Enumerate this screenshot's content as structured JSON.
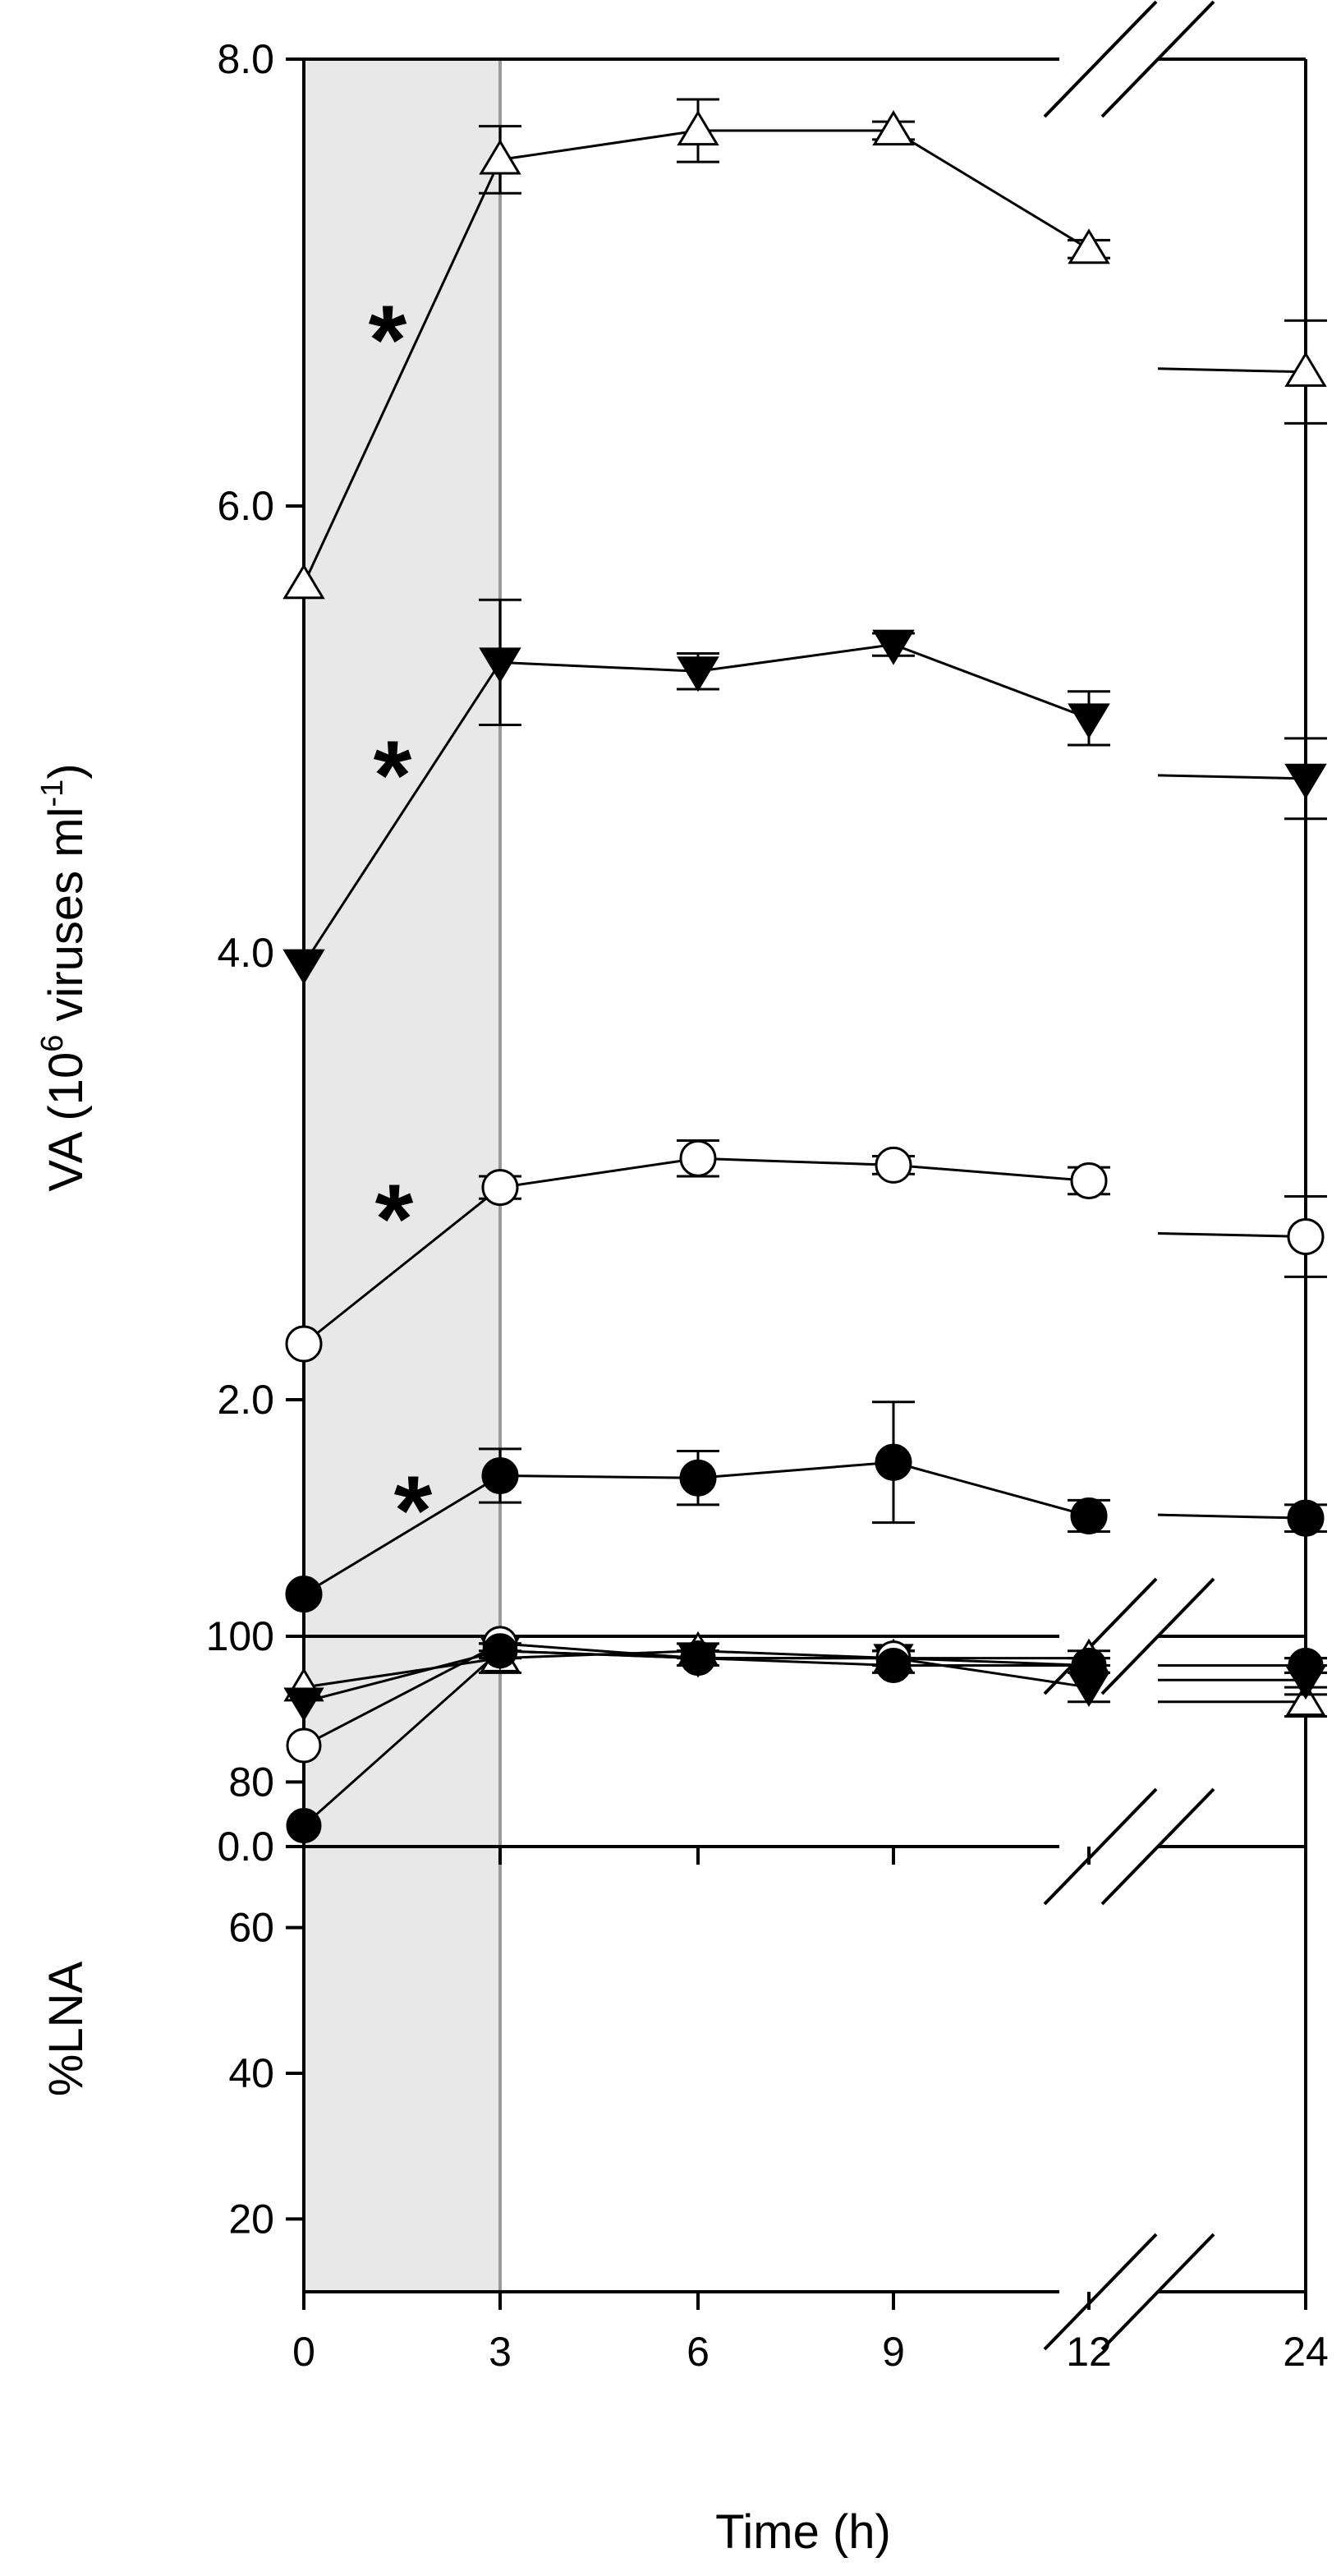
{
  "chart_data": [
    {
      "type": "line",
      "panel": "upper",
      "ylabel": {
        "main": "VA (10",
        "sup1": "6",
        "mid": " viruses ml",
        "sup2": "-1",
        "end": ")"
      },
      "xlabel": "Time (h)",
      "ylim": [
        0,
        8
      ],
      "yticks": [
        "0.0",
        "2.0",
        "4.0",
        "6.0",
        "8.0"
      ],
      "x": [
        0,
        3,
        6,
        9,
        12,
        24
      ],
      "xtick_labels": [
        "0",
        "3",
        "6",
        "9",
        "12",
        "24"
      ],
      "axis_break": "between 12 and 24",
      "shaded_region": [
        0,
        3
      ],
      "significance_marks": [
        "*",
        "*",
        "*",
        "*"
      ],
      "series": [
        {
          "marker": "open-triangle-up",
          "values": [
            5.65,
            7.55,
            7.68,
            7.68,
            7.15,
            6.6
          ],
          "errors": [
            0,
            0.15,
            0.14,
            0.04,
            0.04,
            0.23
          ]
        },
        {
          "marker": "filled-triangle-down",
          "values": [
            3.95,
            5.3,
            5.26,
            5.38,
            5.05,
            4.78
          ],
          "errors": [
            0,
            0.28,
            0.08,
            0.05,
            0.12,
            0.18
          ]
        },
        {
          "marker": "open-circle",
          "values": [
            2.25,
            2.95,
            3.08,
            3.05,
            2.98,
            2.73
          ],
          "errors": [
            0,
            0.05,
            0.08,
            0.04,
            0.06,
            0.18
          ]
        },
        {
          "marker": "filled-circle",
          "values": [
            1.13,
            1.66,
            1.65,
            1.72,
            1.48,
            1.47
          ],
          "errors": [
            0,
            0.12,
            0.12,
            0.27,
            0.07,
            0.06
          ]
        }
      ]
    },
    {
      "type": "line",
      "panel": "lower",
      "ylabel": "%LNA",
      "ylim": [
        10,
        100
      ],
      "yticks": [
        "20",
        "40",
        "60",
        "80",
        "100"
      ],
      "x": [
        0,
        3,
        6,
        9,
        12,
        24
      ],
      "series": [
        {
          "marker": "open-triangle-up",
          "values": [
            93,
            97,
            98,
            97,
            97,
            91
          ],
          "errors": [
            0,
            2,
            1,
            1,
            1,
            2
          ]
        },
        {
          "marker": "filled-triangle-down",
          "values": [
            91,
            98,
            97,
            97,
            93,
            94
          ],
          "errors": [
            0,
            1,
            1,
            1,
            2,
            2
          ]
        },
        {
          "marker": "open-circle",
          "values": [
            85,
            99,
            97,
            97,
            96,
            96
          ],
          "errors": [
            0,
            1,
            1,
            1,
            1,
            1
          ]
        },
        {
          "marker": "filled-circle",
          "values": [
            74,
            98,
            97,
            96,
            96,
            96
          ],
          "errors": [
            0,
            1,
            1,
            1,
            1,
            1
          ]
        }
      ]
    }
  ]
}
